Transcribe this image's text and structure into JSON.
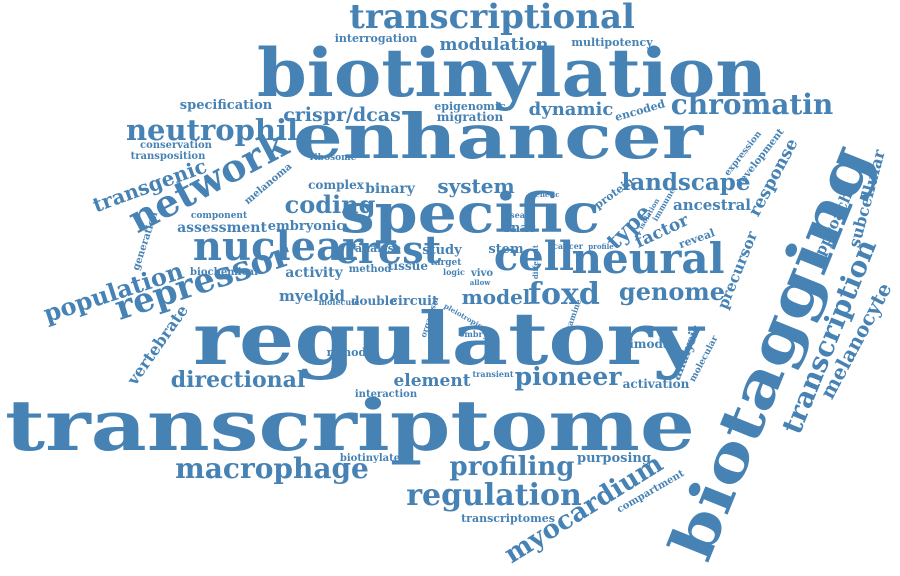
{
  "accent_color": "#4682b4",
  "words": [
    {
      "text": "transcriptional"
    },
    {
      "text": "interrogation"
    },
    {
      "text": "modulation"
    },
    {
      "text": "multipotency"
    },
    {
      "text": "biotinylation"
    },
    {
      "text": "specification"
    },
    {
      "text": "crispr/dcas"
    },
    {
      "text": "epigenomic"
    },
    {
      "text": "migration"
    },
    {
      "text": "dynamic"
    },
    {
      "text": "encoded"
    },
    {
      "text": "chromatin"
    },
    {
      "text": "neutrophil"
    },
    {
      "text": "enhancer"
    },
    {
      "text": "conservation"
    },
    {
      "text": "transposition"
    },
    {
      "text": "ribosome"
    },
    {
      "text": "network"
    },
    {
      "text": "melanoma"
    },
    {
      "text": "transgenic"
    },
    {
      "text": "complex"
    },
    {
      "text": "binary"
    },
    {
      "text": "system"
    },
    {
      "text": "genetic"
    },
    {
      "text": "protein"
    },
    {
      "text": "landscape"
    },
    {
      "text": "expression"
    },
    {
      "text": "development"
    },
    {
      "text": "response"
    },
    {
      "text": "subcellular"
    },
    {
      "text": "specific"
    },
    {
      "text": "coding"
    },
    {
      "text": "ancestral"
    },
    {
      "text": "component"
    },
    {
      "text": "assessment"
    },
    {
      "text": "embryonic"
    },
    {
      "text": "disease"
    },
    {
      "text": "type"
    },
    {
      "text": "factor"
    },
    {
      "text": "isolation"
    },
    {
      "text": "immune"
    },
    {
      "text": "biotagging"
    },
    {
      "text": "generation"
    },
    {
      "text": "nuclear"
    },
    {
      "text": "crest"
    },
    {
      "text": "analyse"
    },
    {
      "text": "rnas"
    },
    {
      "text": "study"
    },
    {
      "text": "stem"
    },
    {
      "text": "cell"
    },
    {
      "text": "cancer"
    },
    {
      "text": "profile"
    },
    {
      "text": "reveal"
    },
    {
      "text": "approach"
    },
    {
      "text": "neural"
    },
    {
      "text": "biochemical"
    },
    {
      "text": "method"
    },
    {
      "text": "tissue"
    },
    {
      "text": "target"
    },
    {
      "text": "logic"
    },
    {
      "text": "vivo"
    },
    {
      "text": "allow"
    },
    {
      "text": "different"
    },
    {
      "text": "precursor"
    },
    {
      "text": "population"
    },
    {
      "text": "repressor"
    },
    {
      "text": "activity"
    },
    {
      "text": "myeloid"
    },
    {
      "text": "model"
    },
    {
      "text": "foxd"
    },
    {
      "text": "genome"
    },
    {
      "text": "molecule"
    },
    {
      "text": "double"
    },
    {
      "text": "circuit"
    },
    {
      "text": "transcription"
    },
    {
      "text": "melanocyte"
    },
    {
      "text": "vertebrate"
    },
    {
      "text": "regulatory"
    },
    {
      "text": "organism"
    },
    {
      "text": "examine"
    },
    {
      "text": "pleiotropic"
    },
    {
      "text": "embryo"
    },
    {
      "text": "remodel"
    },
    {
      "text": "bimodal"
    },
    {
      "text": "analysis"
    },
    {
      "text": "molecular"
    },
    {
      "text": "directional"
    },
    {
      "text": "pioneer"
    },
    {
      "text": "activation"
    },
    {
      "text": "element"
    },
    {
      "text": "transient"
    },
    {
      "text": "interaction"
    },
    {
      "text": "transcriptome"
    },
    {
      "text": "macrophage"
    },
    {
      "text": "profiling"
    },
    {
      "text": "biotinylate"
    },
    {
      "text": "purposing"
    },
    {
      "text": "regulation"
    },
    {
      "text": "myocardium"
    },
    {
      "text": "compartment"
    },
    {
      "text": "transcriptomes"
    }
  ]
}
